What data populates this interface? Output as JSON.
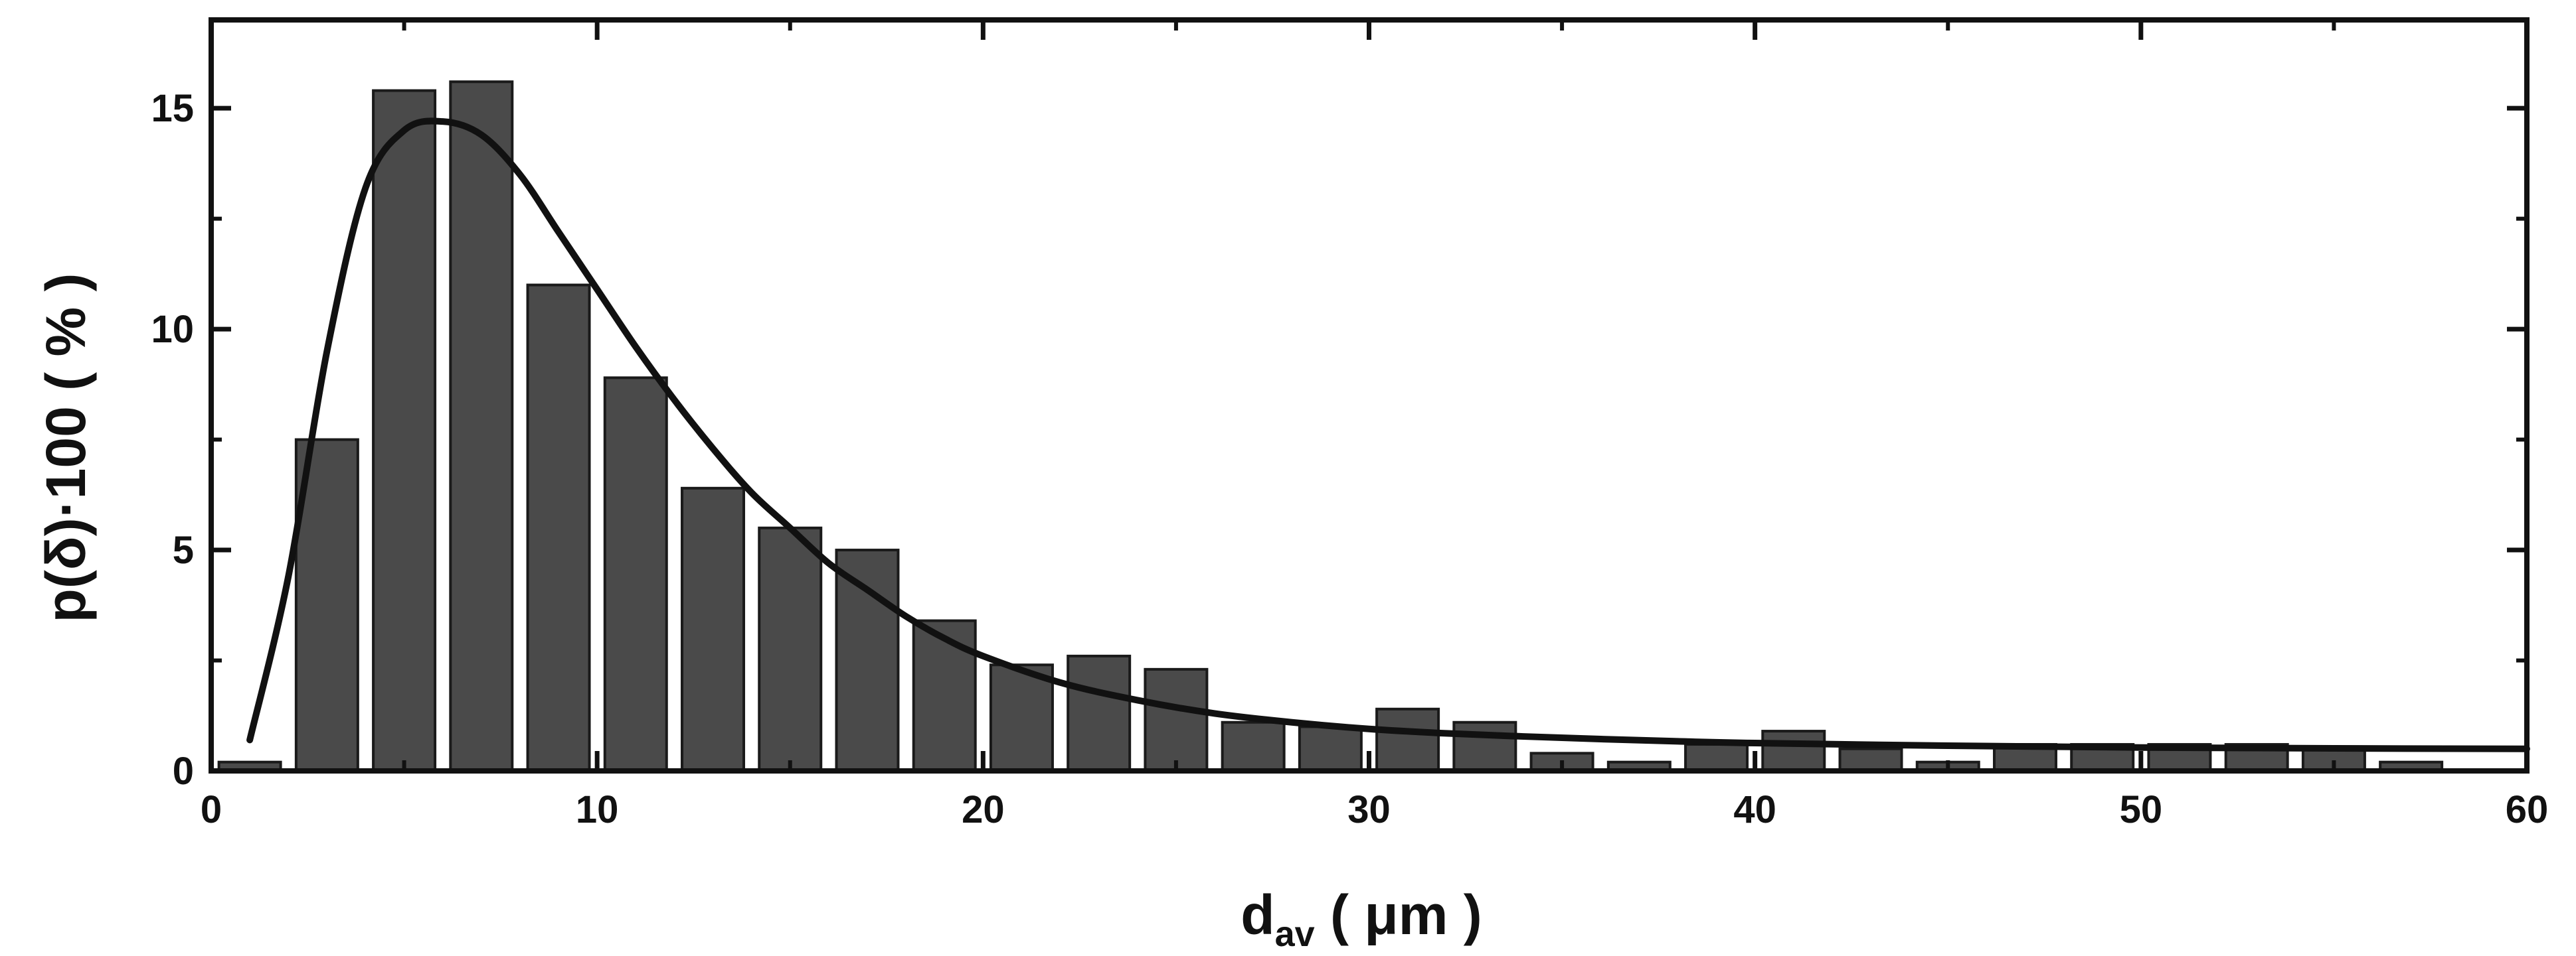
{
  "chart_data": {
    "type": "bar",
    "xlabel": {
      "main": "d",
      "sub": "av",
      "rest": " ( μm )"
    },
    "ylabel": "p(δ)·100  ( % )",
    "xlim": [
      0,
      60
    ],
    "ylim": [
      0,
      17
    ],
    "xticks": [
      0,
      10,
      20,
      30,
      40,
      50,
      60
    ],
    "xtick_labels": [
      "0",
      "10",
      "20",
      "30",
      "40",
      "50",
      "60"
    ],
    "yticks": [
      0,
      5,
      10,
      15
    ],
    "ytick_labels": [
      "0",
      "5",
      "10",
      "15"
    ],
    "grid": false,
    "bar_width": 1.6,
    "bars": {
      "x": [
        1,
        3,
        5,
        7,
        9,
        11,
        13,
        15,
        17,
        19,
        21,
        23,
        25,
        27,
        29,
        31,
        33,
        35,
        37,
        39,
        41,
        43,
        45,
        47,
        49,
        51,
        53,
        55,
        57
      ],
      "values": [
        0.2,
        7.5,
        15.4,
        15.6,
        11.0,
        8.9,
        6.4,
        5.5,
        5.0,
        3.4,
        2.4,
        2.6,
        2.3,
        1.1,
        1.0,
        1.4,
        1.1,
        0.4,
        0.2,
        0.6,
        0.9,
        0.5,
        0.2,
        0.6,
        0.6,
        0.6,
        0.6,
        0.5,
        0.2
      ]
    },
    "fit_curve": {
      "x": [
        1,
        2,
        3,
        4,
        5,
        6,
        7,
        8,
        9,
        10,
        11,
        12,
        13,
        14,
        15,
        16,
        17,
        18,
        19,
        20,
        22,
        24,
        26,
        28,
        30,
        32,
        34,
        36,
        38,
        40,
        45,
        50,
        55,
        60
      ],
      "y": [
        0.7,
        4.4,
        9.5,
        13.2,
        14.5,
        14.7,
        14.4,
        13.5,
        12.2,
        10.9,
        9.6,
        8.4,
        7.3,
        6.3,
        5.5,
        4.7,
        4.1,
        3.5,
        3.0,
        2.6,
        2.0,
        1.6,
        1.3,
        1.1,
        0.95,
        0.85,
        0.78,
        0.72,
        0.67,
        0.63,
        0.57,
        0.53,
        0.51,
        0.5
      ]
    },
    "colors": {
      "bar_fill": "#4a4a4a",
      "bar_stroke": "#1a1a1a",
      "curve": "#111111",
      "axis": "#111111"
    }
  }
}
